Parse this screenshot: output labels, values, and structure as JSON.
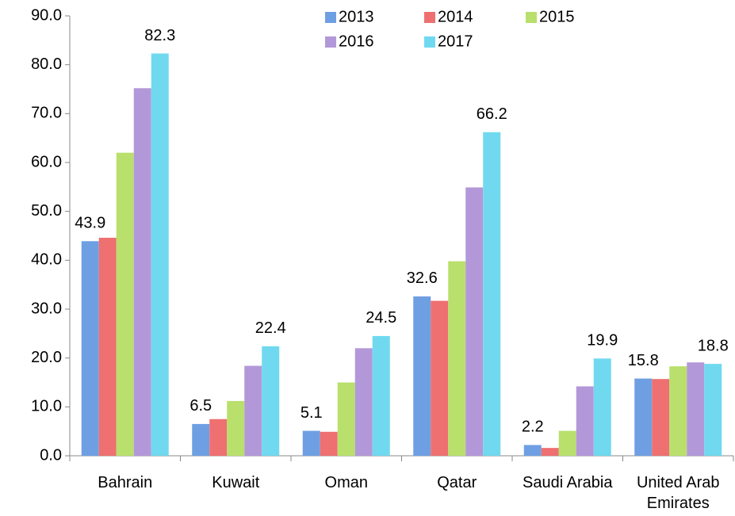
{
  "chart_data": {
    "type": "bar",
    "categories": [
      "Bahrain",
      "Kuwait",
      "Oman",
      "Qatar",
      "Saudi Arabia",
      "United Arab Emirates"
    ],
    "series": [
      {
        "name": "2013",
        "color": "#6f9fe3",
        "show_labels": true,
        "values": [
          43.9,
          6.5,
          5.1,
          32.6,
          2.2,
          15.8
        ]
      },
      {
        "name": "2014",
        "color": "#ee7070",
        "show_labels": false,
        "values": [
          44.6,
          7.5,
          4.9,
          31.7,
          1.6,
          15.7
        ]
      },
      {
        "name": "2015",
        "color": "#b9df6c",
        "show_labels": false,
        "values": [
          62.0,
          11.2,
          15.0,
          39.8,
          5.1,
          18.3
        ]
      },
      {
        "name": "2016",
        "color": "#b398d9",
        "show_labels": false,
        "values": [
          75.2,
          18.4,
          22.0,
          54.9,
          14.2,
          19.1
        ]
      },
      {
        "name": "2017",
        "color": "#70d9ef",
        "show_labels": true,
        "values": [
          82.3,
          22.4,
          24.5,
          66.2,
          19.9,
          18.8
        ]
      }
    ],
    "ylim": [
      0,
      90
    ],
    "yticks": [
      {
        "value": 0,
        "label": "0.0"
      },
      {
        "value": 10,
        "label": "10.0"
      },
      {
        "value": 20,
        "label": "20.0"
      },
      {
        "value": 30,
        "label": "30.0"
      },
      {
        "value": 40,
        "label": "40.0"
      },
      {
        "value": 50,
        "label": "50.0"
      },
      {
        "value": 60,
        "label": "60.0"
      },
      {
        "value": 70,
        "label": "70.0"
      },
      {
        "value": 80,
        "label": "80.0"
      },
      {
        "value": 90,
        "label": "90.0"
      }
    ],
    "grid": false,
    "legend": "top"
  }
}
